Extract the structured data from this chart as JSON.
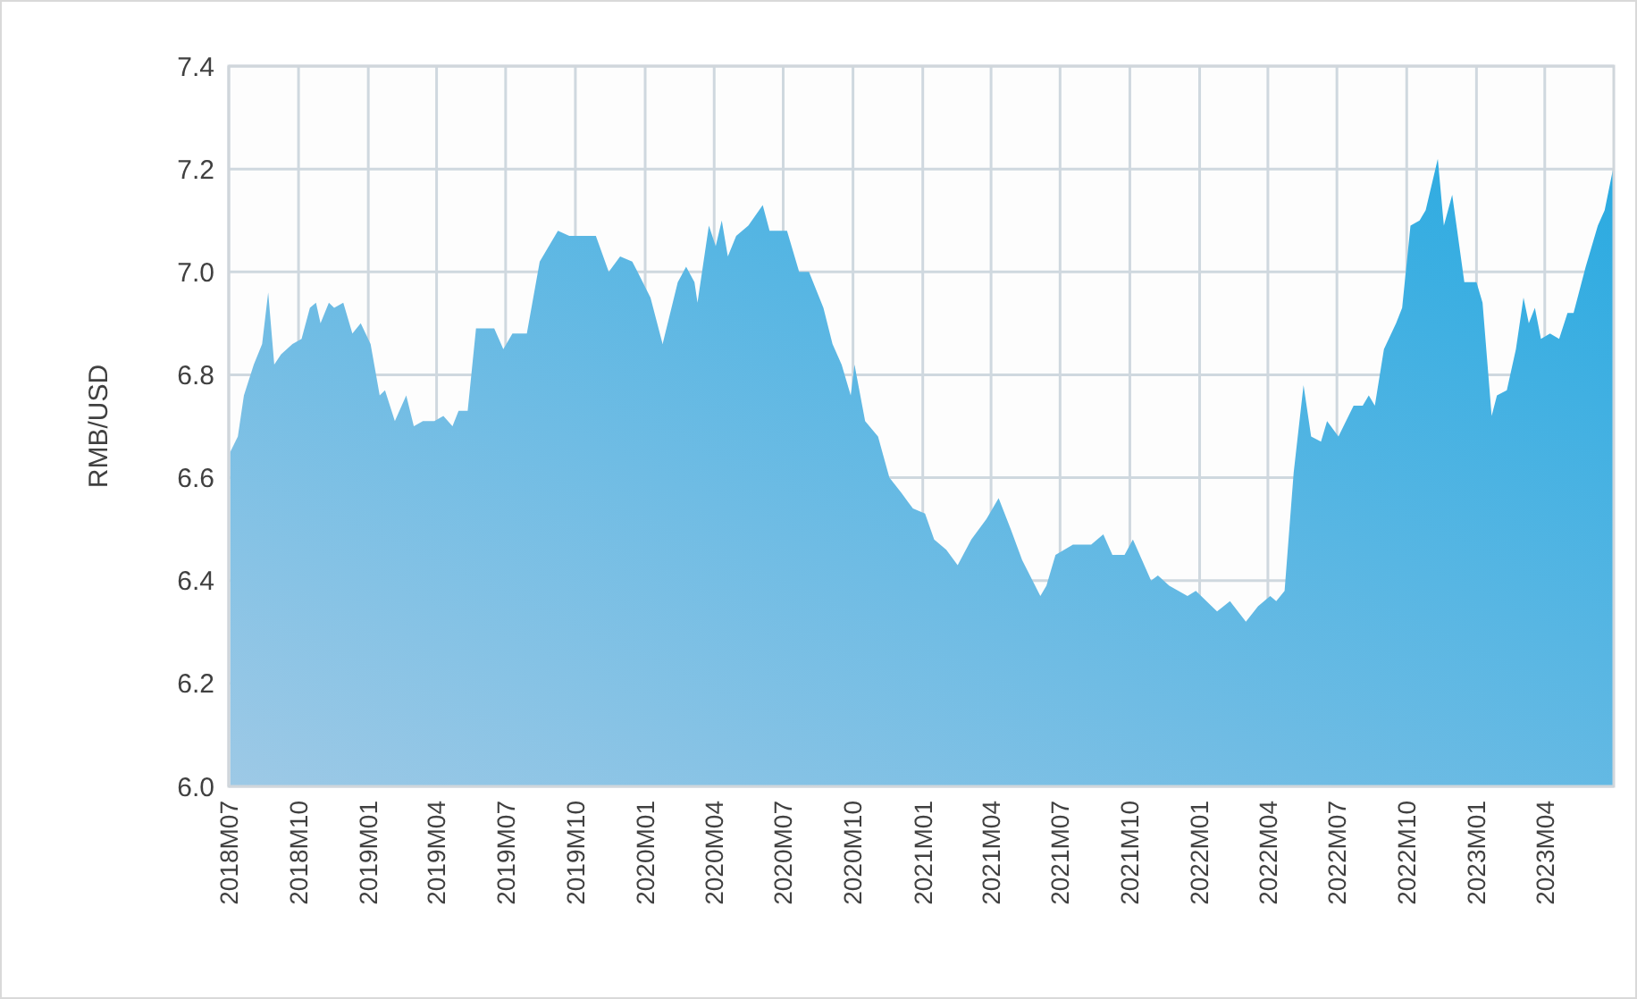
{
  "chart_data": {
    "type": "area",
    "ylabel": "RMB/USD",
    "color": "#29aae1",
    "grid": true,
    "xlim": [
      "2018-07-01",
      "2023-07-01"
    ],
    "xticks": [
      {
        "value": "2018-07-01",
        "label": "2018M07"
      },
      {
        "value": "2018-10-01",
        "label": "2018M10"
      },
      {
        "value": "2019-01-01",
        "label": "2019M01"
      },
      {
        "value": "2019-04-01",
        "label": "2019M04"
      },
      {
        "value": "2019-07-01",
        "label": "2019M07"
      },
      {
        "value": "2019-10-01",
        "label": "2019M10"
      },
      {
        "value": "2020-01-01",
        "label": "2020M01"
      },
      {
        "value": "2020-04-01",
        "label": "2020M04"
      },
      {
        "value": "2020-07-01",
        "label": "2020M07"
      },
      {
        "value": "2020-10-01",
        "label": "2020M10"
      },
      {
        "value": "2021-01-01",
        "label": "2021M01"
      },
      {
        "value": "2021-04-01",
        "label": "2021M04"
      },
      {
        "value": "2021-07-01",
        "label": "2021M07"
      },
      {
        "value": "2021-10-01",
        "label": "2021M10"
      },
      {
        "value": "2022-01-01",
        "label": "2022M01"
      },
      {
        "value": "2022-04-01",
        "label": "2022M04"
      },
      {
        "value": "2022-07-01",
        "label": "2022M07"
      },
      {
        "value": "2022-10-01",
        "label": "2022M10"
      },
      {
        "value": "2023-01-01",
        "label": "2023M01"
      },
      {
        "value": "2023-04-01",
        "label": "2023M04"
      }
    ],
    "ylim": [
      6.0,
      7.4
    ],
    "yticks": [
      {
        "value": 6.0,
        "label": "6.0"
      },
      {
        "value": 6.2,
        "label": "6.2"
      },
      {
        "value": 6.4,
        "label": "6.4"
      },
      {
        "value": 6.6,
        "label": "6.6"
      },
      {
        "value": 6.8,
        "label": "6.8"
      },
      {
        "value": 7.0,
        "label": "7.0"
      },
      {
        "value": 7.2,
        "label": "7.2"
      },
      {
        "value": 7.4,
        "label": "7.4"
      }
    ],
    "x": [
      "2018-07-03",
      "2018-07-13",
      "2018-07-21",
      "2018-08-03",
      "2018-08-14",
      "2018-08-22",
      "2018-08-30",
      "2018-09-08",
      "2018-09-23",
      "2018-10-05",
      "2018-10-16",
      "2018-10-24",
      "2018-10-30",
      "2018-11-10",
      "2018-11-17",
      "2018-11-29",
      "2018-12-11",
      "2018-12-22",
      "2019-01-04",
      "2019-01-16",
      "2019-01-23",
      "2019-02-05",
      "2019-02-20",
      "2019-03-02",
      "2019-03-14",
      "2019-03-29",
      "2019-04-10",
      "2019-04-22",
      "2019-04-30",
      "2019-05-12",
      "2019-05-23",
      "2019-06-16",
      "2019-06-28",
      "2019-07-10",
      "2019-07-29",
      "2019-08-15",
      "2019-09-08",
      "2019-09-23",
      "2019-10-28",
      "2019-11-14",
      "2019-11-29",
      "2019-12-15",
      "2019-12-22",
      "2020-01-08",
      "2020-01-24",
      "2020-02-13",
      "2020-02-24",
      "2020-03-06",
      "2020-03-10",
      "2020-03-25",
      "2020-04-03",
      "2020-04-11",
      "2020-04-19",
      "2020-04-30",
      "2020-05-16",
      "2020-06-04",
      "2020-06-13",
      "2020-07-06",
      "2020-07-22",
      "2020-08-04",
      "2020-08-23",
      "2020-09-04",
      "2020-09-16",
      "2020-09-28",
      "2020-10-03",
      "2020-10-17",
      "2020-11-03",
      "2020-11-18",
      "2020-12-04",
      "2020-12-19",
      "2021-01-04",
      "2021-01-16",
      "2021-02-01",
      "2021-02-16",
      "2021-03-06",
      "2021-03-26",
      "2021-04-11",
      "2021-04-27",
      "2021-05-12",
      "2021-06-05",
      "2021-06-13",
      "2021-06-25",
      "2021-07-18",
      "2021-08-11",
      "2021-08-27",
      "2021-09-08",
      "2021-09-24",
      "2021-10-05",
      "2021-10-29",
      "2021-11-07",
      "2021-11-22",
      "2021-12-16",
      "2021-12-27",
      "2022-01-24",
      "2022-02-10",
      "2022-03-03",
      "2022-03-19",
      "2022-04-04",
      "2022-04-12",
      "2022-04-23",
      "2022-05-05",
      "2022-05-18",
      "2022-05-28",
      "2022-06-10",
      "2022-06-18",
      "2022-07-03",
      "2022-07-23",
      "2022-08-04",
      "2022-08-12",
      "2022-08-20",
      "2022-09-01",
      "2022-09-17",
      "2022-09-25",
      "2022-10-06",
      "2022-10-18",
      "2022-10-26",
      "2022-11-11",
      "2022-11-19",
      "2022-11-30",
      "2022-12-16",
      "2023-01-01",
      "2023-01-09",
      "2023-01-21",
      "2023-01-28",
      "2023-02-10",
      "2023-02-22",
      "2023-03-04",
      "2023-03-11",
      "2023-03-19",
      "2023-03-27",
      "2023-04-08",
      "2023-04-20",
      "2023-05-01",
      "2023-05-09",
      "2023-05-25",
      "2023-06-10",
      "2023-06-19",
      "2023-06-30"
    ],
    "values": [
      6.65,
      6.68,
      6.76,
      6.82,
      6.86,
      6.96,
      6.82,
      6.84,
      6.86,
      6.87,
      6.93,
      6.94,
      6.9,
      6.94,
      6.93,
      6.94,
      6.88,
      6.9,
      6.86,
      6.76,
      6.77,
      6.71,
      6.76,
      6.7,
      6.71,
      6.71,
      6.72,
      6.7,
      6.73,
      6.73,
      6.89,
      6.89,
      6.85,
      6.88,
      6.88,
      7.02,
      7.08,
      7.07,
      7.07,
      7.0,
      7.03,
      7.02,
      7.0,
      6.95,
      6.86,
      6.98,
      7.01,
      6.98,
      6.94,
      7.09,
      7.05,
      7.1,
      7.03,
      7.07,
      7.09,
      7.13,
      7.08,
      7.08,
      7.0,
      7.0,
      6.93,
      6.86,
      6.82,
      6.76,
      6.82,
      6.71,
      6.68,
      6.6,
      6.57,
      6.54,
      6.53,
      6.48,
      6.46,
      6.43,
      6.48,
      6.52,
      6.56,
      6.5,
      6.44,
      6.37,
      6.39,
      6.45,
      6.47,
      6.47,
      6.49,
      6.45,
      6.45,
      6.48,
      6.4,
      6.41,
      6.39,
      6.37,
      6.38,
      6.34,
      6.36,
      6.32,
      6.35,
      6.37,
      6.36,
      6.38,
      6.61,
      6.78,
      6.68,
      6.67,
      6.71,
      6.68,
      6.74,
      6.74,
      6.76,
      6.74,
      6.85,
      6.9,
      6.93,
      7.09,
      7.1,
      7.12,
      7.22,
      7.09,
      7.15,
      6.98,
      6.98,
      6.94,
      6.72,
      6.76,
      6.77,
      6.85,
      6.95,
      6.9,
      6.93,
      6.87,
      6.88,
      6.87,
      6.92,
      6.92,
      7.01,
      7.09,
      7.12,
      7.2
    ]
  }
}
